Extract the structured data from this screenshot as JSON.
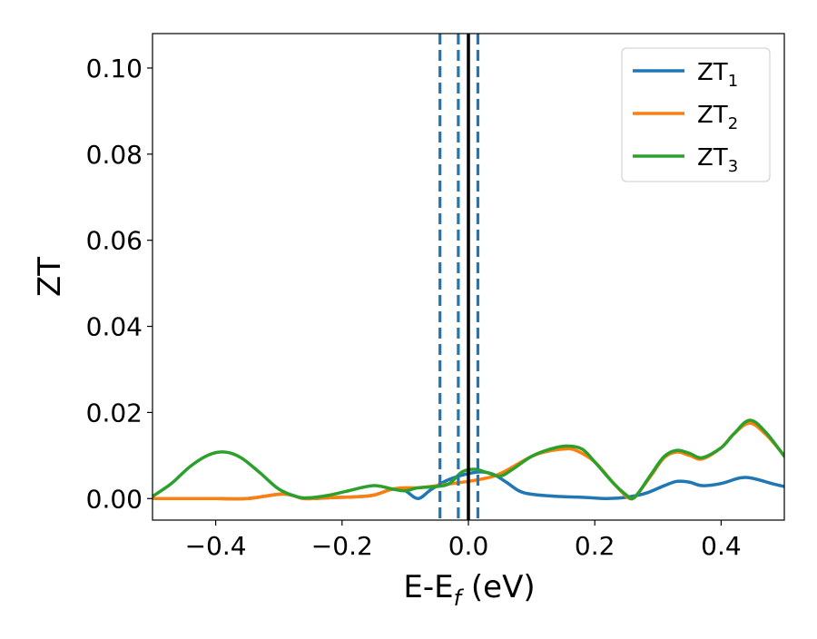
{
  "chart_data": {
    "type": "line",
    "xlabel": "E-E",
    "xlabel_sub": "f",
    "xlabel_unit": " (eV)",
    "ylabel": "ZT",
    "xlim": [
      -0.5,
      0.5
    ],
    "ylim": [
      -0.005,
      0.108
    ],
    "x_ticks": [
      -0.4,
      -0.2,
      0.0,
      0.2,
      0.4
    ],
    "x_tick_labels": [
      "−0.4",
      "−0.2",
      "0.0",
      "0.2",
      "0.4"
    ],
    "y_ticks": [
      0.0,
      0.02,
      0.04,
      0.06,
      0.08,
      0.1
    ],
    "y_tick_labels": [
      "0.00",
      "0.02",
      "0.04",
      "0.06",
      "0.08",
      "0.10"
    ],
    "grid": false,
    "legend_position": "top-right",
    "vertical_lines": [
      {
        "x": -0.045,
        "style": "dashed",
        "color": "#1f77b4"
      },
      {
        "x": -0.016,
        "style": "dashed",
        "color": "#1f77b4"
      },
      {
        "x": 0.015,
        "style": "dashed",
        "color": "#1f77b4"
      },
      {
        "x": 0.0,
        "style": "solid",
        "color": "#000000"
      }
    ],
    "series": [
      {
        "name": "ZT",
        "name_sub": "1",
        "color": "#1f77b4",
        "x": [
          -0.5,
          -0.45,
          -0.4,
          -0.35,
          -0.3,
          -0.28,
          -0.26,
          -0.22,
          -0.18,
          -0.15,
          -0.12,
          -0.1,
          -0.08,
          -0.06,
          -0.04,
          -0.02,
          0.0,
          0.02,
          0.04,
          0.06,
          0.08,
          0.1,
          0.14,
          0.18,
          0.22,
          0.25,
          0.28,
          0.31,
          0.33,
          0.35,
          0.37,
          0.4,
          0.43,
          0.45,
          0.48,
          0.5
        ],
        "values": [
          0.0,
          0.0,
          0.0,
          0.0,
          0.001,
          0.0008,
          0.0,
          0.0002,
          0.0004,
          0.0008,
          0.0022,
          0.0018,
          0.0,
          0.002,
          0.0038,
          0.005,
          0.0058,
          0.0062,
          0.0056,
          0.0038,
          0.0018,
          0.001,
          0.0005,
          0.0003,
          0.0,
          0.0003,
          0.0012,
          0.003,
          0.004,
          0.0038,
          0.003,
          0.0035,
          0.0048,
          0.0047,
          0.0035,
          0.0028
        ]
      },
      {
        "name": "ZT",
        "name_sub": "2",
        "color": "#ff7f0e",
        "x": [
          -0.5,
          -0.45,
          -0.4,
          -0.35,
          -0.3,
          -0.28,
          -0.26,
          -0.22,
          -0.18,
          -0.15,
          -0.12,
          -0.1,
          -0.08,
          -0.06,
          -0.04,
          -0.02,
          0.0,
          0.02,
          0.04,
          0.06,
          0.08,
          0.1,
          0.12,
          0.15,
          0.17,
          0.2,
          0.23,
          0.25,
          0.26,
          0.27,
          0.29,
          0.31,
          0.33,
          0.35,
          0.37,
          0.4,
          0.42,
          0.445,
          0.47,
          0.5
        ],
        "values": [
          0.0,
          0.0,
          0.0,
          0.0,
          0.001,
          0.0008,
          0.0,
          0.0002,
          0.0004,
          0.0008,
          0.0022,
          0.0025,
          0.0025,
          0.0028,
          0.0032,
          0.0036,
          0.004,
          0.0045,
          0.0052,
          0.0065,
          0.0082,
          0.0098,
          0.0108,
          0.0115,
          0.0112,
          0.0085,
          0.0035,
          0.0005,
          0.0,
          0.0015,
          0.0055,
          0.0095,
          0.0108,
          0.01,
          0.0092,
          0.0118,
          0.015,
          0.0175,
          0.015,
          0.01
        ]
      },
      {
        "name": "ZT",
        "name_sub": "3",
        "color": "#2ca02c",
        "x": [
          -0.5,
          -0.47,
          -0.44,
          -0.41,
          -0.385,
          -0.36,
          -0.33,
          -0.3,
          -0.27,
          -0.25,
          -0.22,
          -0.19,
          -0.15,
          -0.12,
          -0.1,
          -0.08,
          -0.05,
          -0.03,
          -0.01,
          0.01,
          0.03,
          0.05,
          0.07,
          0.1,
          0.13,
          0.155,
          0.18,
          0.2,
          0.23,
          0.25,
          0.26,
          0.27,
          0.29,
          0.31,
          0.33,
          0.35,
          0.37,
          0.4,
          0.42,
          0.445,
          0.47,
          0.5
        ],
        "values": [
          0.0005,
          0.0035,
          0.0075,
          0.0102,
          0.0108,
          0.0095,
          0.006,
          0.0022,
          0.0004,
          0.0002,
          0.0008,
          0.0018,
          0.003,
          0.0022,
          0.0018,
          0.0025,
          0.0028,
          0.0035,
          0.0062,
          0.0068,
          0.006,
          0.0052,
          0.0068,
          0.0098,
          0.0115,
          0.0122,
          0.0115,
          0.0085,
          0.0035,
          0.0008,
          0.0,
          0.0015,
          0.0058,
          0.0098,
          0.0112,
          0.0105,
          0.0095,
          0.0118,
          0.015,
          0.0182,
          0.0155,
          0.0098
        ]
      }
    ]
  }
}
